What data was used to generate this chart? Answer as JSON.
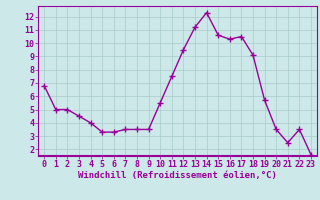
{
  "x": [
    0,
    1,
    2,
    3,
    4,
    5,
    6,
    7,
    8,
    9,
    10,
    11,
    12,
    13,
    14,
    15,
    16,
    17,
    18,
    19,
    20,
    21,
    22,
    23
  ],
  "y": [
    6.8,
    5.0,
    5.0,
    4.5,
    4.0,
    3.3,
    3.3,
    3.5,
    3.5,
    3.5,
    5.5,
    7.5,
    9.5,
    11.2,
    12.3,
    10.6,
    10.3,
    10.5,
    9.1,
    5.7,
    3.5,
    2.5,
    3.5,
    1.6
  ],
  "line_color": "#990099",
  "marker": "+",
  "marker_size": 4,
  "bg_color": "#cce8e8",
  "grid_color": "#aacccc",
  "xlabel": "Windchill (Refroidissement éolien,°C)",
  "xlim": [
    -0.5,
    23.5
  ],
  "ylim": [
    1.5,
    12.8
  ],
  "yticks": [
    2,
    3,
    4,
    5,
    6,
    7,
    8,
    9,
    10,
    11,
    12
  ],
  "xticks": [
    0,
    1,
    2,
    3,
    4,
    5,
    6,
    7,
    8,
    9,
    10,
    11,
    12,
    13,
    14,
    15,
    16,
    17,
    18,
    19,
    20,
    21,
    22,
    23
  ],
  "tick_label_color": "#990099",
  "xlabel_color": "#990099",
  "xlabel_fontsize": 6.5,
  "tick_fontsize": 6.0,
  "spine_color": "#990099",
  "linewidth": 1.0
}
